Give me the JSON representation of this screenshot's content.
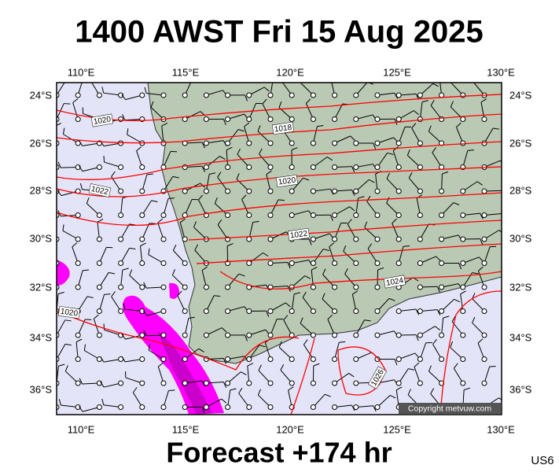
{
  "header": {
    "title": "1400 AWST Fri 15 Aug 2025"
  },
  "map": {
    "lon_labels": [
      "110°E",
      "115°E",
      "120°E",
      "125°E",
      "130°E"
    ],
    "lat_labels": [
      "24°S",
      "26°S",
      "28°S",
      "30°S",
      "32°S",
      "34°S",
      "36°S"
    ],
    "isobar_labels": [
      "1020",
      "1018",
      "1020",
      "1022",
      "1022",
      "1024",
      "1020",
      "1026"
    ],
    "copyright": "Copyright metvuw.com"
  },
  "footer": {
    "text": "Forecast +174 hr",
    "code": "US6"
  }
}
